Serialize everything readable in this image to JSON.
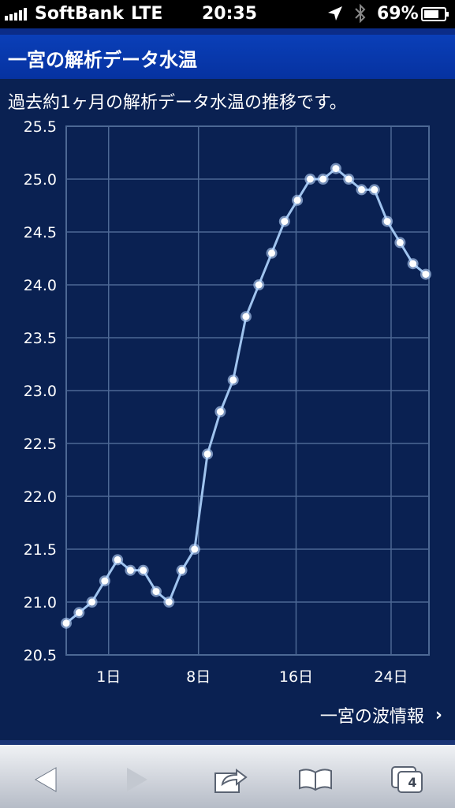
{
  "status_bar": {
    "carrier": "SoftBank",
    "network": "LTE",
    "time": "20:35",
    "battery": "69%",
    "icons": [
      "signal-icon",
      "location-arrow-icon",
      "bluetooth-icon",
      "battery-icon"
    ]
  },
  "header": {
    "title": "一宮の解析データ水温"
  },
  "description": "過去約1ヶ月の解析データ水温の推移です。",
  "chart_data": {
    "type": "line",
    "title": "",
    "xlabel": "",
    "ylabel": "",
    "x_tick_labels": [
      "1日",
      "8日",
      "16日",
      "24日"
    ],
    "y_tick_labels": [
      "25.5",
      "25.0",
      "24.5",
      "24.0",
      "23.5",
      "23.0",
      "22.5",
      "22.0",
      "21.5",
      "21.0",
      "20.5"
    ],
    "ylim": [
      20.5,
      25.5
    ],
    "grid": true,
    "legend": "none",
    "series": [
      {
        "values": [
          20.8,
          20.9,
          21.0,
          21.2,
          21.4,
          21.3,
          21.3,
          21.1,
          21.0,
          21.3,
          21.5,
          22.4,
          22.8,
          23.1,
          23.7,
          24.0,
          24.3,
          24.6,
          24.8,
          25.0,
          25.0,
          25.1,
          25.0,
          24.9,
          24.9,
          24.6,
          24.4,
          24.2,
          24.1
        ]
      }
    ],
    "colors": {
      "background": "#0a2152",
      "line": "#9fc3ee",
      "grid": "#4d6894",
      "marker": "#ffffff"
    }
  },
  "link": {
    "label": "一宮の波情報"
  },
  "toolbar": {
    "tab_count": "4",
    "icons": [
      "back-icon",
      "forward-icon",
      "share-icon",
      "bookmarks-icon",
      "tabs-icon"
    ]
  }
}
